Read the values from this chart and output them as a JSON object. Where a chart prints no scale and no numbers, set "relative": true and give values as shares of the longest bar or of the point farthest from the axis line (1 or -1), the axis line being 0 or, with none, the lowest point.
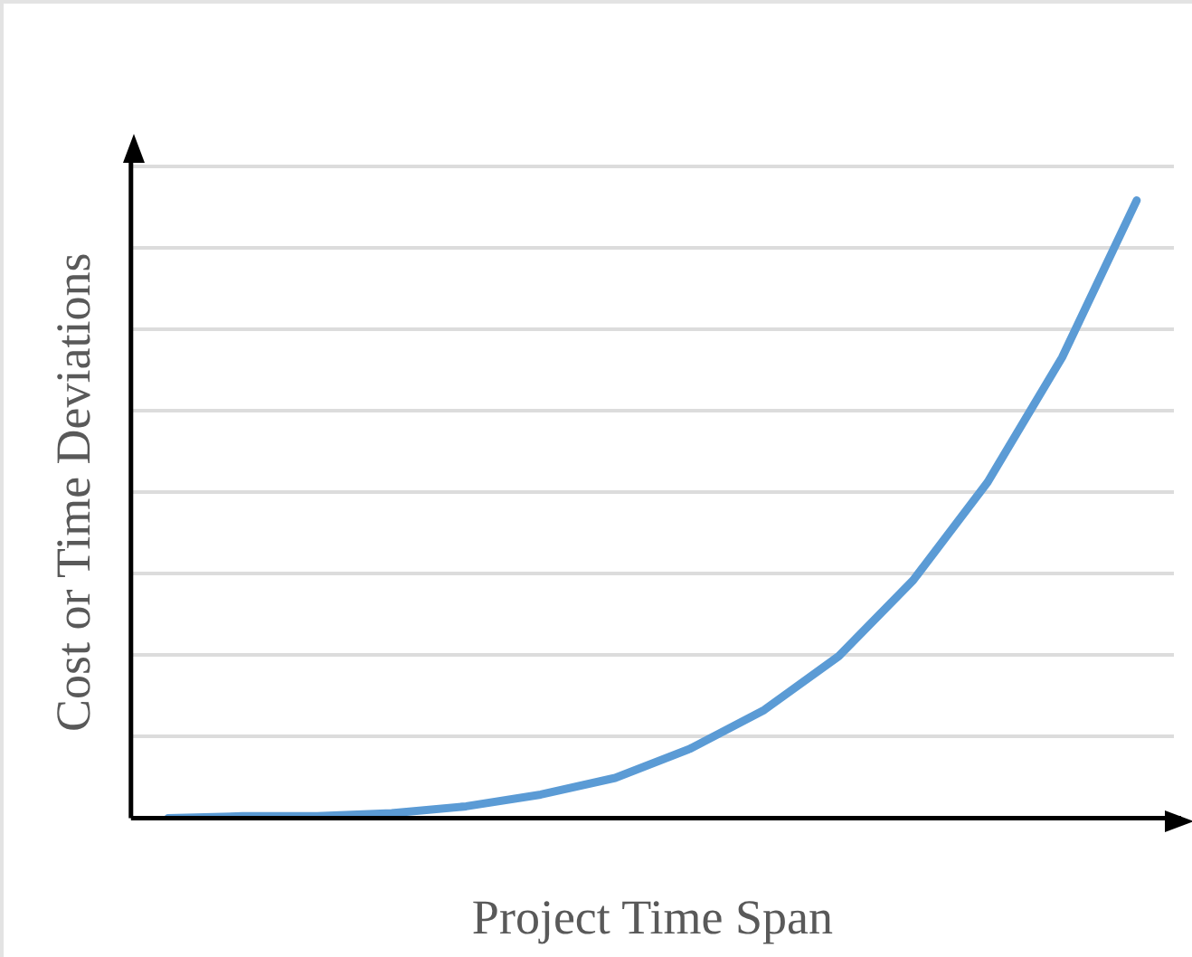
{
  "chart_data": {
    "type": "line",
    "relative": true,
    "xlabel": "Project Time Span",
    "ylabel": "Cost or Time Deviations",
    "categories": [
      null,
      null,
      null,
      null,
      null,
      null,
      null,
      null,
      null,
      null,
      null,
      null,
      null,
      null
    ],
    "series": [
      {
        "color": "#5b9bd5",
        "values": [
          0,
          0.003,
          0.003,
          0.008,
          0.019,
          0.038,
          0.065,
          0.112,
          0.175,
          0.262,
          0.385,
          0.544,
          0.746,
          1
        ]
      }
    ],
    "grid": "y",
    "marker": "none",
    "line_style": "solid"
  }
}
